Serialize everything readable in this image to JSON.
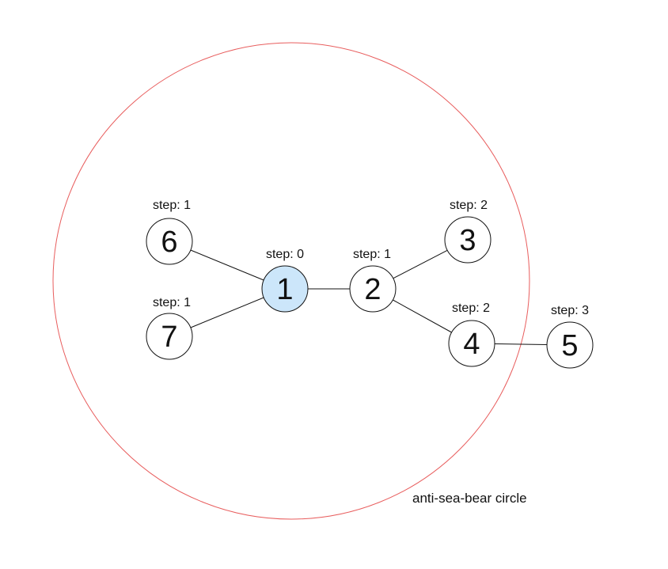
{
  "diagram": {
    "circle_caption": "anti-sea-bear circle",
    "colors": {
      "boundary": "#e85d5d",
      "highlight_fill": "#cce6fa",
      "node_fill": "#ffffff",
      "stroke": "#111111"
    },
    "nodes": [
      {
        "id": "1",
        "label": "1",
        "step": "step: 0",
        "highlighted": true
      },
      {
        "id": "2",
        "label": "2",
        "step": "step: 1",
        "highlighted": false
      },
      {
        "id": "3",
        "label": "3",
        "step": "step: 2",
        "highlighted": false
      },
      {
        "id": "4",
        "label": "4",
        "step": "step: 2",
        "highlighted": false
      },
      {
        "id": "5",
        "label": "5",
        "step": "step: 3",
        "highlighted": false
      },
      {
        "id": "6",
        "label": "6",
        "step": "step: 1",
        "highlighted": false
      },
      {
        "id": "7",
        "label": "7",
        "step": "step: 1",
        "highlighted": false
      }
    ],
    "edges": [
      [
        "1",
        "2"
      ],
      [
        "1",
        "6"
      ],
      [
        "1",
        "7"
      ],
      [
        "2",
        "3"
      ],
      [
        "2",
        "4"
      ],
      [
        "4",
        "5"
      ]
    ]
  }
}
